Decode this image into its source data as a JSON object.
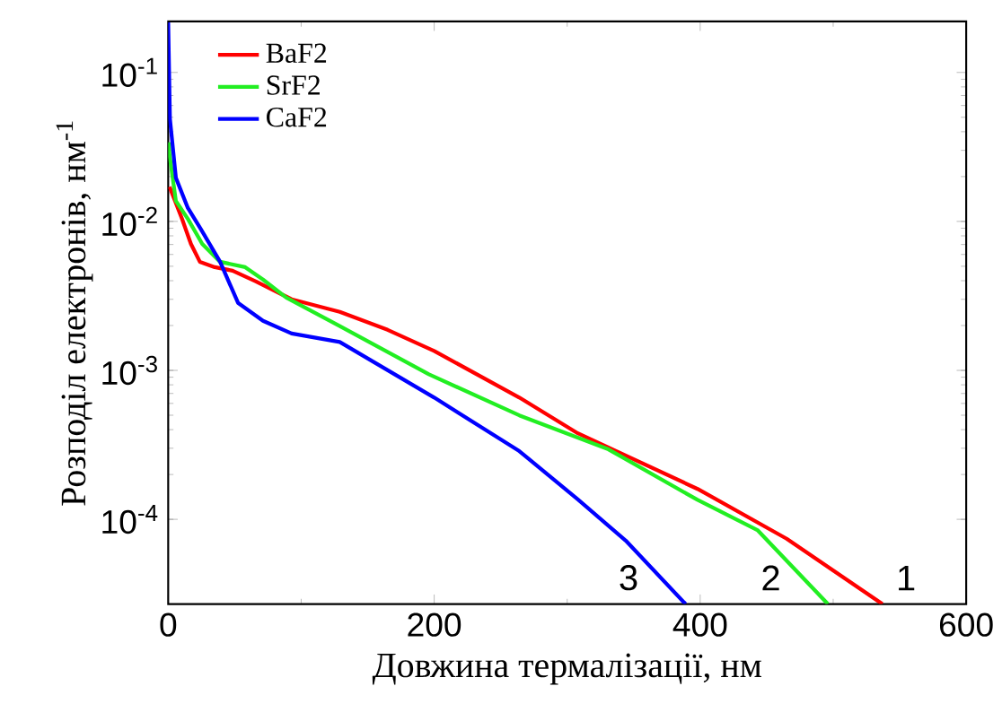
{
  "chart_data": {
    "type": "line",
    "xlabel": "Довжина термалізації, нм",
    "ylabel": "Розподіл електронів, нм$^{-1}$",
    "log": "y",
    "xlim": [
      0,
      600
    ],
    "ylim": [
      2.7e-05,
      0.22
    ],
    "xticks": [
      0,
      200,
      400,
      600
    ],
    "yticks": [
      {
        "value": 0.0001,
        "label": "10$^{-4}$"
      },
      {
        "value": 0.001,
        "label": "10$^{-3}$"
      },
      {
        "value": 0.01,
        "label": "10$^{-2}$"
      },
      {
        "value": 0.1,
        "label": "10$^{-1}$"
      }
    ],
    "legend": "top left",
    "grid": false,
    "marker": "none",
    "line_style": "solid",
    "series": [
      {
        "name": "BaF2",
        "color": "#ff0000",
        "x": [
          1,
          10.4,
          17.1,
          23.8,
          35,
          48.4,
          66,
          92.8,
          129,
          165,
          200,
          264,
          308,
          398,
          465,
          537
        ],
        "values": [
          0.0171,
          0.0104,
          0.00706,
          0.00536,
          0.00493,
          0.00467,
          0.00395,
          0.003,
          0.00247,
          0.00187,
          0.00135,
          0.000657,
          0.000378,
          0.00016,
          7.41e-05,
          2.7e-05
        ]
      },
      {
        "name": "SrF2",
        "color": "#22ee22",
        "x": [
          0.5,
          1,
          5.8,
          14.8,
          25.6,
          39,
          57.9,
          71.3,
          88.8,
          129,
          196,
          264,
          331,
          398,
          443,
          496
        ],
        "values": [
          0.034,
          0.028,
          0.0137,
          0.0104,
          0.00706,
          0.00536,
          0.00493,
          0.00407,
          0.00308,
          0.00198,
          0.000941,
          0.000499,
          0.000295,
          0.000135,
          8.47e-05,
          2.7e-05
        ]
      },
      {
        "name": "CaF2",
        "color": "#0000ff",
        "x": [
          0,
          1.3,
          5.8,
          14.8,
          25.6,
          39,
          52.5,
          71.3,
          92.8,
          129,
          200,
          264,
          308,
          344,
          389
        ],
        "values": [
          0.217,
          0.0488,
          0.0196,
          0.0123,
          0.00857,
          0.00536,
          0.00284,
          0.00215,
          0.00177,
          0.00155,
          0.000657,
          0.000287,
          0.000136,
          7.2e-05,
          2.7e-05
        ]
      }
    ],
    "annotations": [
      "1",
      "2",
      "3"
    ]
  }
}
